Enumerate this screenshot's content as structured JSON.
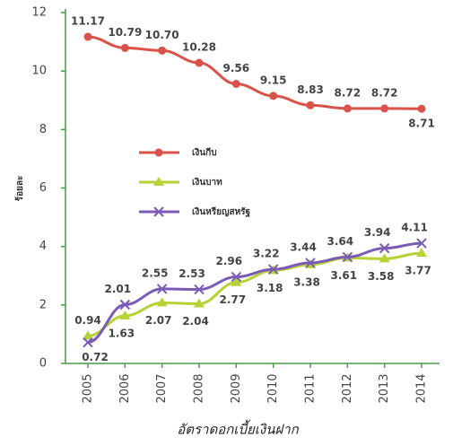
{
  "chart_data": {
    "type": "line",
    "categories": [
      "2005",
      "2006",
      "2007",
      "2008",
      "2009",
      "2010",
      "2011",
      "2012",
      "2013",
      "2014"
    ],
    "series": [
      {
        "name": "เงินกีบ",
        "color": "#d9534a",
        "marker": "circle",
        "values": [
          11.17,
          10.79,
          10.7,
          10.28,
          9.56,
          9.15,
          8.83,
          8.72,
          8.72,
          8.71
        ],
        "value_labels": [
          "11.17",
          "10.79",
          "10.70",
          "10.28",
          "9.56",
          "9.15",
          "8.83",
          "8.72",
          "8.72",
          "8.71"
        ]
      },
      {
        "name": "เงินบาท",
        "color": "#b5d334",
        "marker": "triangle",
        "values": [
          0.94,
          1.63,
          2.07,
          2.04,
          2.77,
          3.18,
          3.38,
          3.61,
          3.58,
          3.77
        ]
      },
      {
        "name": "เงินหรียญสหรัฐ",
        "color": "#7b5bb5",
        "marker": "x",
        "values": [
          0.72,
          2.01,
          2.55,
          2.53,
          2.96,
          3.22,
          3.44,
          3.64,
          3.94,
          4.11
        ]
      }
    ],
    "ylabel": "ร้อยละ",
    "caption": "อัตราดอกเบี้ยเงินฝาก",
    "ylim": [
      0,
      12
    ],
    "yticks": [
      0,
      2,
      4,
      6,
      8,
      10,
      12
    ]
  }
}
